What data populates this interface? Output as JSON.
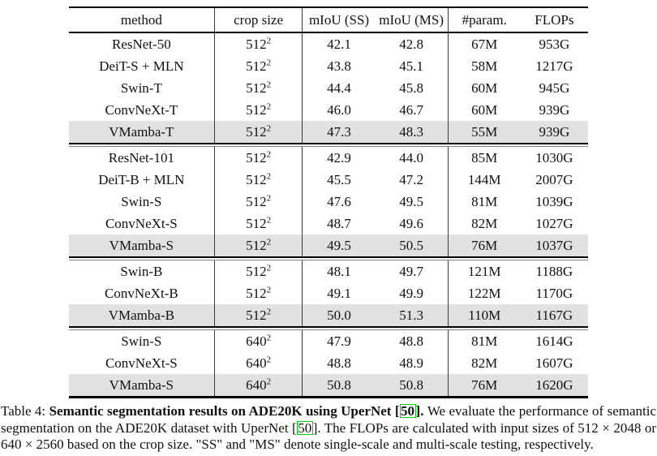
{
  "colors": {
    "highlight_row": "#e1e1e1",
    "citation_box_border": "#00cc00",
    "text": "#111111",
    "rule": "#000000"
  },
  "table": {
    "columns": [
      {
        "label": "method"
      },
      {
        "label": "crop size"
      },
      {
        "label": "mIoU (SS)"
      },
      {
        "label": "mIoU (MS)"
      },
      {
        "label": "#param."
      },
      {
        "label": "FLOPs"
      }
    ],
    "groups": [
      {
        "rows": [
          {
            "method": "ResNet-50",
            "crop_base": "512",
            "crop_sup": "2",
            "miou_ss": "42.1",
            "miou_ms": "42.8",
            "params": "67M",
            "flops": "953G",
            "highlight": false
          },
          {
            "method": "DeiT-S + MLN",
            "crop_base": "512",
            "crop_sup": "2",
            "miou_ss": "43.8",
            "miou_ms": "45.1",
            "params": "58M",
            "flops": "1217G",
            "highlight": false
          },
          {
            "method": "Swin-T",
            "crop_base": "512",
            "crop_sup": "2",
            "miou_ss": "44.4",
            "miou_ms": "45.8",
            "params": "60M",
            "flops": "945G",
            "highlight": false
          },
          {
            "method": "ConvNeXt-T",
            "crop_base": "512",
            "crop_sup": "2",
            "miou_ss": "46.0",
            "miou_ms": "46.7",
            "params": "60M",
            "flops": "939G",
            "highlight": false
          },
          {
            "method": "VMamba-T",
            "crop_base": "512",
            "crop_sup": "2",
            "miou_ss": "47.3",
            "miou_ms": "48.3",
            "params": "55M",
            "flops": "939G",
            "highlight": true
          }
        ]
      },
      {
        "rows": [
          {
            "method": "ResNet-101",
            "crop_base": "512",
            "crop_sup": "2",
            "miou_ss": "42.9",
            "miou_ms": "44.0",
            "params": "85M",
            "flops": "1030G",
            "highlight": false
          },
          {
            "method": "DeiT-B + MLN",
            "crop_base": "512",
            "crop_sup": "2",
            "miou_ss": "45.5",
            "miou_ms": "47.2",
            "params": "144M",
            "flops": "2007G",
            "highlight": false
          },
          {
            "method": "Swin-S",
            "crop_base": "512",
            "crop_sup": "2",
            "miou_ss": "47.6",
            "miou_ms": "49.5",
            "params": "81M",
            "flops": "1039G",
            "highlight": false
          },
          {
            "method": "ConvNeXt-S",
            "crop_base": "512",
            "crop_sup": "2",
            "miou_ss": "48.7",
            "miou_ms": "49.6",
            "params": "82M",
            "flops": "1027G",
            "highlight": false
          },
          {
            "method": "VMamba-S",
            "crop_base": "512",
            "crop_sup": "2",
            "miou_ss": "49.5",
            "miou_ms": "50.5",
            "params": "76M",
            "flops": "1037G",
            "highlight": true
          }
        ]
      },
      {
        "rows": [
          {
            "method": "Swin-B",
            "crop_base": "512",
            "crop_sup": "2",
            "miou_ss": "48.1",
            "miou_ms": "49.7",
            "params": "121M",
            "flops": "1188G",
            "highlight": false
          },
          {
            "method": "ConvNeXt-B",
            "crop_base": "512",
            "crop_sup": "2",
            "miou_ss": "49.1",
            "miou_ms": "49.9",
            "params": "122M",
            "flops": "1170G",
            "highlight": false
          },
          {
            "method": "VMamba-B",
            "crop_base": "512",
            "crop_sup": "2",
            "miou_ss": "50.0",
            "miou_ms": "51.3",
            "params": "110M",
            "flops": "1167G",
            "highlight": true
          }
        ]
      },
      {
        "rows": [
          {
            "method": "Swin-S",
            "crop_base": "640",
            "crop_sup": "2",
            "miou_ss": "47.9",
            "miou_ms": "48.8",
            "params": "81M",
            "flops": "1614G",
            "highlight": false
          },
          {
            "method": "ConvNeXt-S",
            "crop_base": "640",
            "crop_sup": "2",
            "miou_ss": "48.8",
            "miou_ms": "48.9",
            "params": "82M",
            "flops": "1607G",
            "highlight": false
          },
          {
            "method": "VMamba-S",
            "crop_base": "640",
            "crop_sup": "2",
            "miou_ss": "50.8",
            "miou_ms": "50.8",
            "params": "76M",
            "flops": "1620G",
            "highlight": true
          }
        ]
      }
    ]
  },
  "caption": {
    "label": "Table 4: ",
    "title_bold": "Semantic segmentation results on ADE20K using UperNet ",
    "cite_open": "[",
    "cite1": "50",
    "cite_close": "]",
    "title_period": ". ",
    "body_1": "We evaluate the performance of semantic segmentation on the ADE20K dataset with UperNet ",
    "body_2": ". The FLOPs are calculated with input sizes of 512 × 2048 or 640 × 2560 based on the crop size. \"SS\" and \"MS\" denote single-scale and multi-scale testing, respectively.",
    "cite2": "50"
  }
}
